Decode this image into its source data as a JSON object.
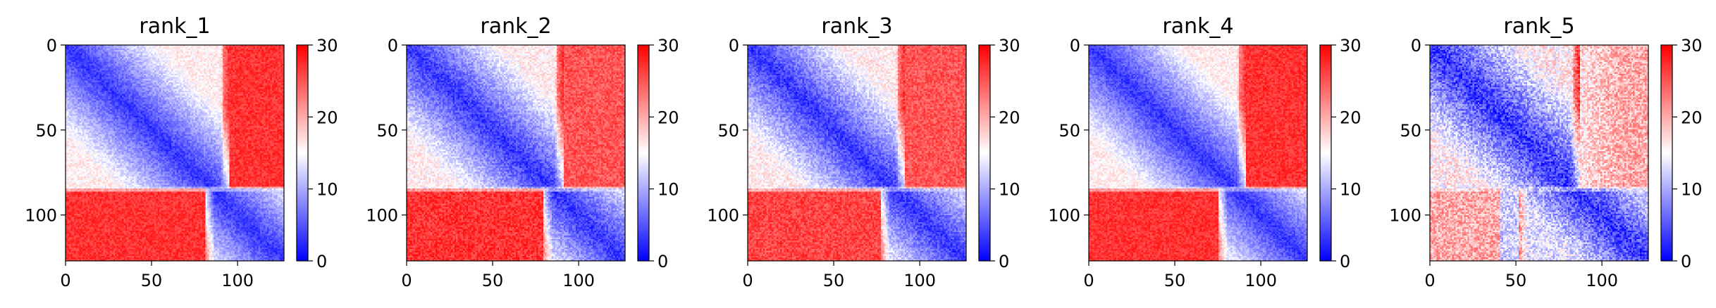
{
  "figure": {
    "colormap": {
      "name": "bwr",
      "low": "#0000ff",
      "mid": "#ffffff",
      "high": "#ff0000"
    }
  },
  "chart_data": [
    {
      "type": "heatmap",
      "title": "rank_1",
      "size": 128,
      "xlim": [
        0,
        127
      ],
      "ylim": [
        127,
        0
      ],
      "xticks": [
        0,
        50,
        100
      ],
      "yticks": [
        0,
        50,
        100
      ],
      "vmin": 0,
      "vmax": 30,
      "colorbar_ticks": [
        0,
        10,
        20,
        30
      ],
      "block_split": 85,
      "split_col_top": 96,
      "split_col_bottom": 82,
      "near_diag_low": 3,
      "off_block_top_right": 27,
      "off_block_bottom_left": 27,
      "noise": 2
    },
    {
      "type": "heatmap",
      "title": "rank_2",
      "size": 128,
      "xlim": [
        0,
        127
      ],
      "ylim": [
        127,
        0
      ],
      "xticks": [
        0,
        50,
        100
      ],
      "yticks": [
        0,
        50,
        100
      ],
      "vmin": 0,
      "vmax": 30,
      "colorbar_ticks": [
        0,
        10,
        20,
        30
      ],
      "block_split": 85,
      "split_col_top": 92,
      "split_col_bottom": 80,
      "near_diag_low": 3,
      "off_block_top_right": 25,
      "off_block_bottom_left": 27,
      "noise": 2.5
    },
    {
      "type": "heatmap",
      "title": "rank_3",
      "size": 128,
      "xlim": [
        0,
        127
      ],
      "ylim": [
        127,
        0
      ],
      "xticks": [
        0,
        50,
        100
      ],
      "yticks": [
        0,
        50,
        100
      ],
      "vmin": 0,
      "vmax": 30,
      "colorbar_ticks": [
        0,
        10,
        20,
        30
      ],
      "block_split": 85,
      "split_col_top": 92,
      "split_col_bottom": 78,
      "near_diag_low": 3,
      "off_block_top_right": 25,
      "off_block_bottom_left": 26,
      "noise": 2.5
    },
    {
      "type": "heatmap",
      "title": "rank_4",
      "size": 128,
      "xlim": [
        0,
        127
      ],
      "ylim": [
        127,
        0
      ],
      "xticks": [
        0,
        50,
        100
      ],
      "yticks": [
        0,
        50,
        100
      ],
      "vmin": 0,
      "vmax": 30,
      "colorbar_ticks": [
        0,
        10,
        20,
        30
      ],
      "block_split": 85,
      "split_col_top": 92,
      "split_col_bottom": 76,
      "near_diag_low": 3,
      "off_block_top_right": 27,
      "off_block_bottom_left": 27,
      "noise": 2
    },
    {
      "type": "heatmap",
      "title": "rank_5",
      "size": 128,
      "xlim": [
        0,
        127
      ],
      "ylim": [
        127,
        0
      ],
      "xticks": [
        0,
        50,
        100
      ],
      "yticks": [
        0,
        50,
        100
      ],
      "vmin": 0,
      "vmax": 30,
      "colorbar_ticks": [
        0,
        10,
        20,
        30
      ],
      "block_split": 85,
      "split_col_top": 88,
      "split_col_bottom": 52,
      "near_diag_low": 3,
      "off_block_top_right": 20,
      "off_block_bottom_left": 20,
      "noise": 4
    }
  ]
}
